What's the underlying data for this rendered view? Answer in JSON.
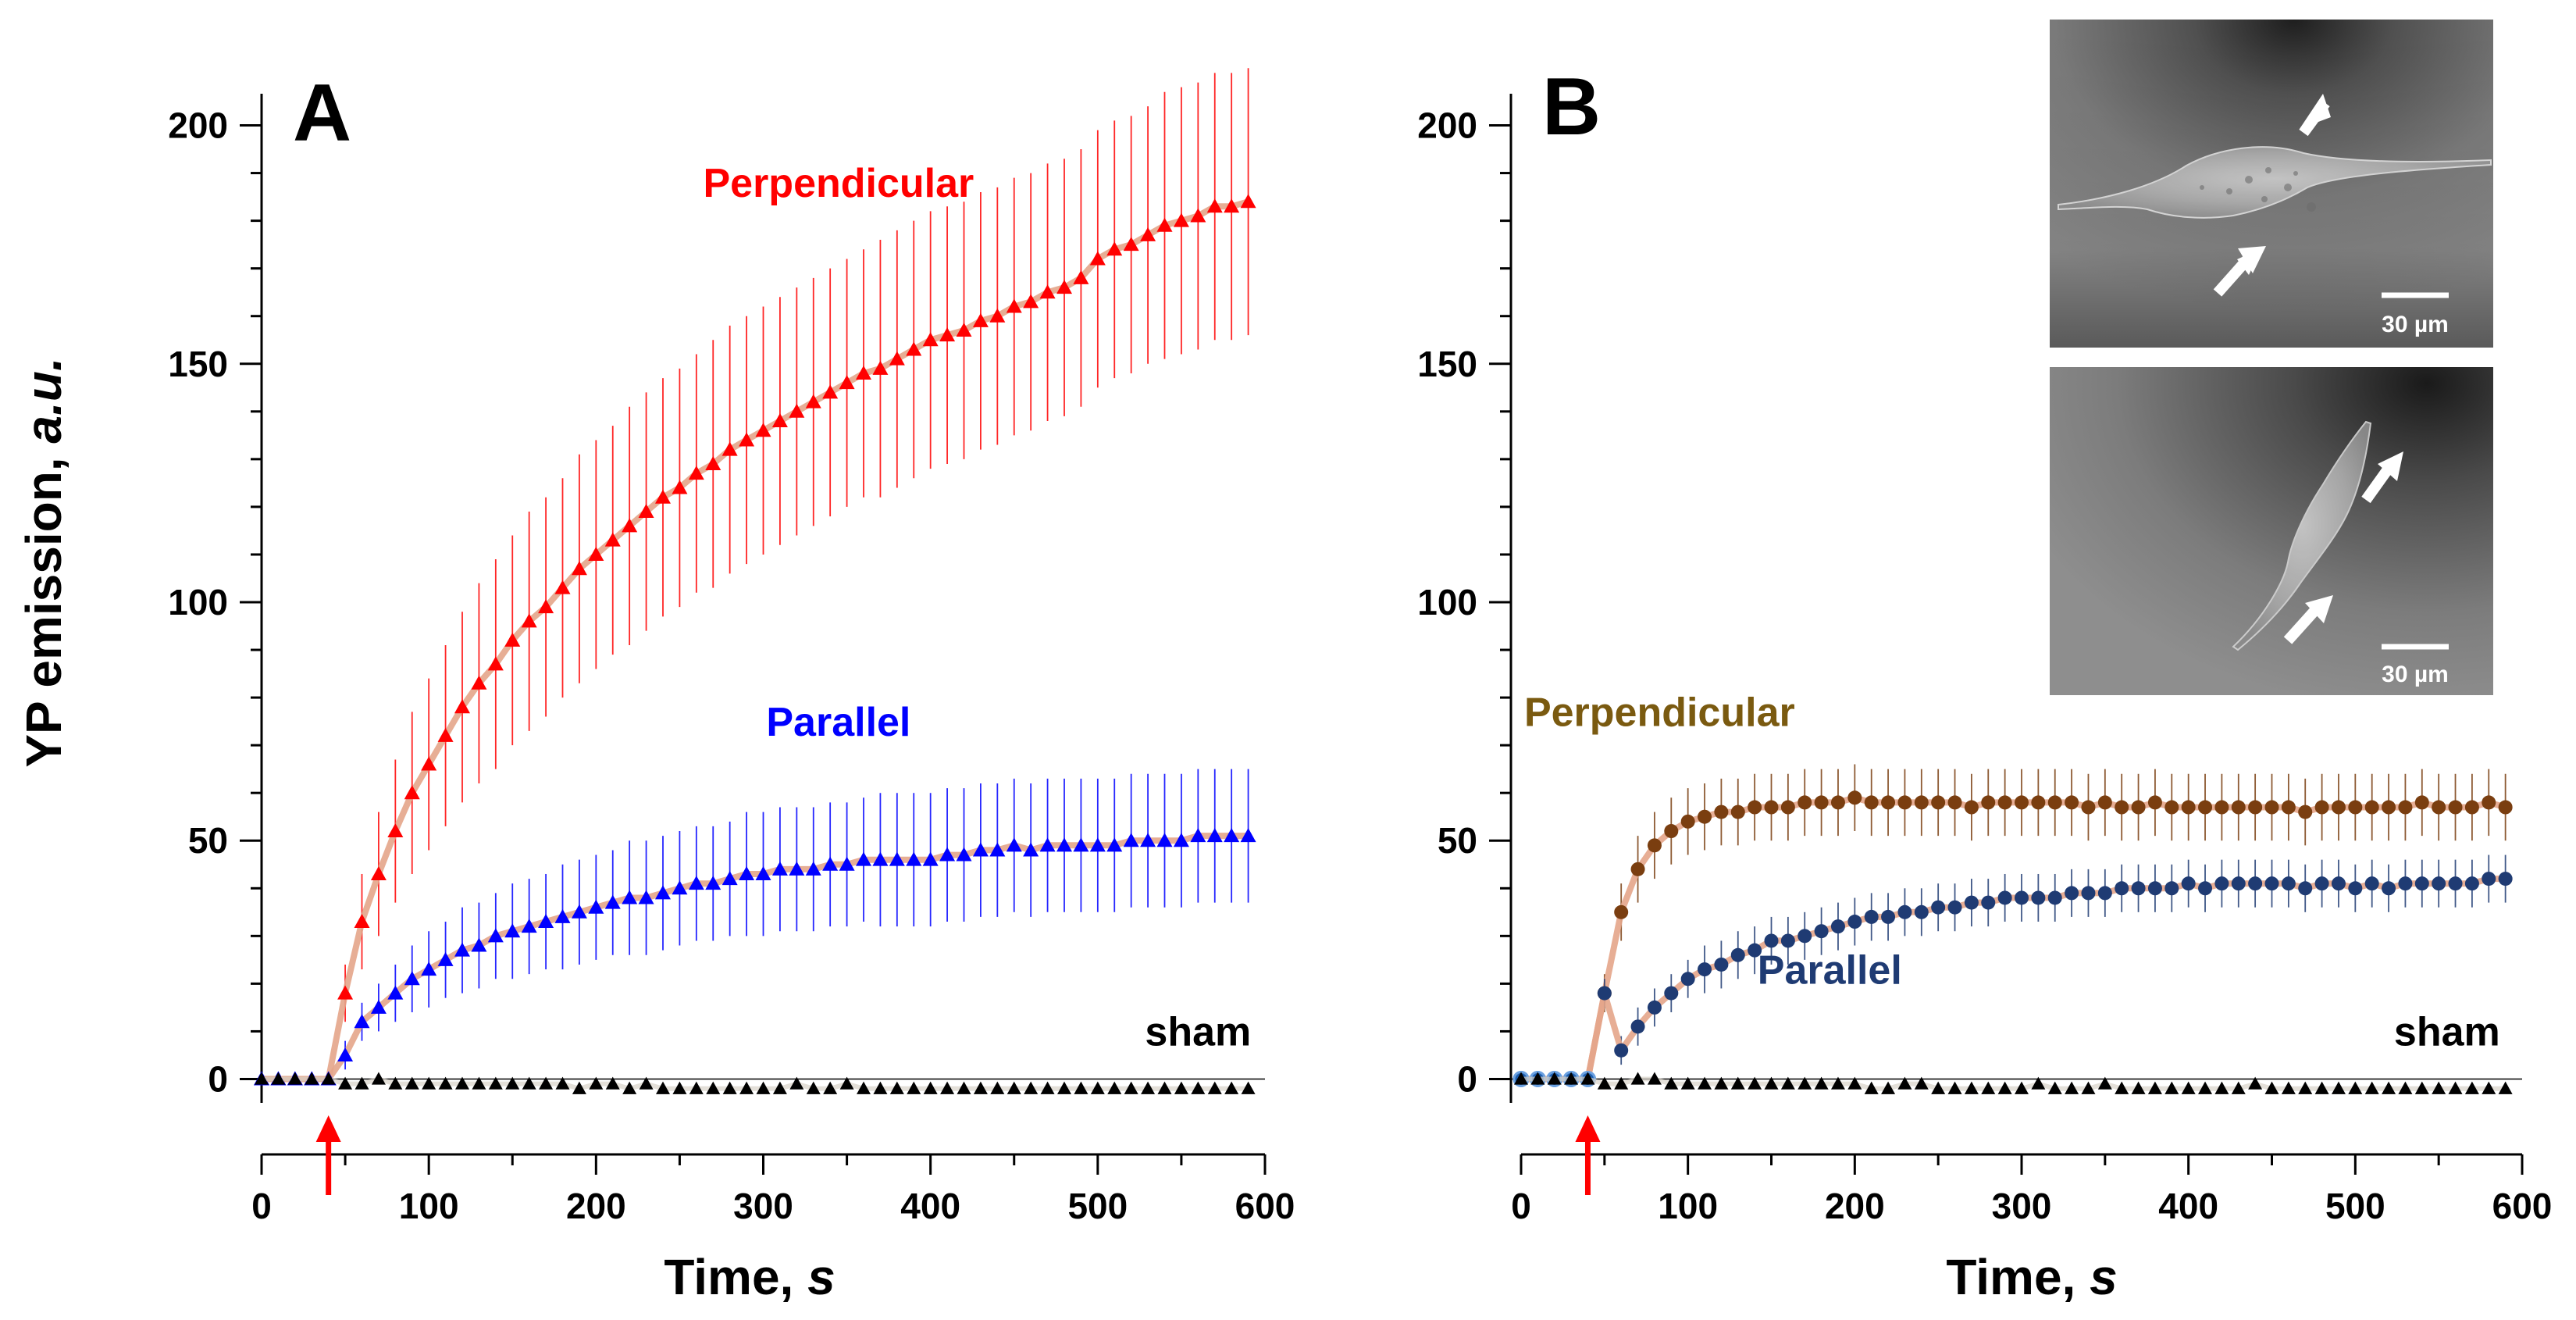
{
  "figure": {
    "ylabel": {
      "main": "YP emission, ",
      "italic": "a.u."
    },
    "xlabel": {
      "main": "Time, ",
      "italic": "s"
    }
  },
  "colors": {
    "A_perpendicular": "#ff0000",
    "A_parallel": "#0000ff",
    "B_perpendicular": "#7a3e10",
    "B_parallel": "#1f3b73",
    "sham": "#000000",
    "fit": "#e4a58a",
    "stimulus_arrow": "#ff0000"
  },
  "chart_data": [
    {
      "panel": "A",
      "type": "scatter",
      "xlim": [
        0,
        600
      ],
      "ylim": [
        -5,
        205
      ],
      "xticks": [
        0,
        100,
        200,
        300,
        400,
        500,
        600
      ],
      "yticks": [
        0,
        50,
        100,
        150,
        200
      ],
      "stimulus_time": 40,
      "marker": "triangle",
      "x": [
        0,
        10,
        20,
        30,
        40,
        50,
        60,
        70,
        80,
        90,
        100,
        110,
        120,
        130,
        140,
        150,
        160,
        170,
        180,
        190,
        200,
        210,
        220,
        230,
        240,
        250,
        260,
        270,
        280,
        290,
        300,
        310,
        320,
        330,
        340,
        350,
        360,
        370,
        380,
        390,
        400,
        410,
        420,
        430,
        440,
        450,
        460,
        470,
        480,
        490,
        500,
        510,
        520,
        530,
        540,
        550,
        560,
        570,
        580,
        590
      ],
      "series": [
        {
          "name": "Perpendicular",
          "color_key": "A_perpendicular",
          "label_x": 345,
          "label_y": 185,
          "values": [
            0,
            0,
            0,
            0,
            0,
            18,
            33,
            43,
            52,
            60,
            66,
            72,
            78,
            83,
            87,
            92,
            96,
            99,
            103,
            107,
            110,
            113,
            116,
            119,
            122,
            124,
            127,
            129,
            132,
            134,
            136,
            138,
            140,
            142,
            144,
            146,
            148,
            149,
            151,
            153,
            155,
            156,
            157,
            159,
            160,
            162,
            163,
            165,
            166,
            168,
            172,
            174,
            175,
            177,
            179,
            180,
            181,
            183,
            183,
            184
          ],
          "errors": [
            0,
            0,
            0,
            0,
            0,
            6,
            10,
            13,
            15,
            17,
            18,
            19,
            20,
            21,
            22,
            22,
            23,
            23,
            23,
            24,
            24,
            24,
            25,
            25,
            25,
            25,
            25,
            26,
            26,
            26,
            26,
            26,
            26,
            26,
            26,
            26,
            26,
            27,
            27,
            27,
            27,
            27,
            27,
            27,
            27,
            27,
            27,
            27,
            27,
            27,
            27,
            27,
            27,
            27,
            28,
            28,
            28,
            28,
            28,
            28
          ]
        },
        {
          "name": "Parallel",
          "color_key": "A_parallel",
          "label_x": 345,
          "label_y": 72,
          "values": [
            0,
            0,
            0,
            0,
            0,
            5,
            12,
            15,
            18,
            21,
            23,
            25,
            27,
            28,
            30,
            31,
            32,
            33,
            34,
            35,
            36,
            37,
            38,
            38,
            39,
            40,
            41,
            41,
            42,
            43,
            43,
            44,
            44,
            44,
            45,
            45,
            46,
            46,
            46,
            46,
            46,
            47,
            47,
            48,
            48,
            49,
            48,
            49,
            49,
            49,
            49,
            49,
            50,
            50,
            50,
            50,
            51,
            51,
            51,
            51
          ],
          "errors": [
            0,
            0,
            0,
            0,
            0,
            3,
            4,
            5,
            6,
            7,
            8,
            8,
            9,
            9,
            9,
            10,
            10,
            10,
            11,
            11,
            11,
            11,
            12,
            12,
            12,
            12,
            12,
            12,
            12,
            13,
            13,
            13,
            13,
            13,
            13,
            13,
            13,
            14,
            14,
            14,
            14,
            14,
            14,
            14,
            14,
            14,
            14,
            14,
            14,
            14,
            14,
            14,
            14,
            14,
            14,
            14,
            14,
            14,
            14,
            14
          ]
        },
        {
          "name": "sham",
          "color_key": "sham",
          "label_x": 560,
          "label_y": 7,
          "values": [
            0,
            0,
            0,
            0,
            0,
            -1,
            -1,
            0,
            -1,
            -1,
            -1,
            -1,
            -1,
            -1,
            -1,
            -1,
            -1,
            -1,
            -1,
            -2,
            -1,
            -1,
            -2,
            -1,
            -2,
            -2,
            -2,
            -2,
            -2,
            -2,
            -2,
            -2,
            -1,
            -2,
            -2,
            -1,
            -2,
            -2,
            -2,
            -2,
            -2,
            -2,
            -2,
            -2,
            -2,
            -2,
            -2,
            -2,
            -2,
            -2,
            -2,
            -2,
            -2,
            -2,
            -2,
            -2,
            -2,
            -2,
            -2,
            -2
          ],
          "errors": []
        }
      ]
    },
    {
      "panel": "B",
      "type": "scatter",
      "xlim": [
        0,
        600
      ],
      "ylim": [
        -5,
        205
      ],
      "xticks": [
        0,
        100,
        200,
        300,
        400,
        500,
        600
      ],
      "yticks": [
        0,
        50,
        100,
        150,
        200
      ],
      "stimulus_time": 40,
      "marker": "circle",
      "x": [
        0,
        10,
        20,
        30,
        40,
        50,
        60,
        70,
        80,
        90,
        100,
        110,
        120,
        130,
        140,
        150,
        160,
        170,
        180,
        190,
        200,
        210,
        220,
        230,
        240,
        250,
        260,
        270,
        280,
        290,
        300,
        310,
        320,
        330,
        340,
        350,
        360,
        370,
        380,
        390,
        400,
        410,
        420,
        430,
        440,
        450,
        460,
        470,
        480,
        490,
        500,
        510,
        520,
        530,
        540,
        550,
        560,
        570,
        580,
        590
      ],
      "series": [
        {
          "name": "Perpendicular",
          "color_key": "B_perpendicular",
          "label_x": 83,
          "label_y": 74,
          "values": [
            0,
            0,
            0,
            0,
            0,
            18,
            35,
            44,
            49,
            52,
            54,
            55,
            56,
            56,
            57,
            57,
            57,
            58,
            58,
            58,
            59,
            58,
            58,
            58,
            58,
            58,
            58,
            57,
            58,
            58,
            58,
            58,
            58,
            58,
            57,
            58,
            57,
            57,
            58,
            57,
            57,
            57,
            57,
            57,
            57,
            57,
            57,
            56,
            57,
            57,
            57,
            57,
            57,
            57,
            58,
            57,
            57,
            57,
            58,
            57
          ],
          "errors": [
            0,
            0,
            0,
            0,
            0,
            4,
            6,
            7,
            7,
            7,
            7,
            7,
            7,
            7,
            7,
            7,
            7,
            7,
            7,
            7,
            7,
            7,
            7,
            7,
            7,
            7,
            7,
            7,
            7,
            7,
            7,
            7,
            7,
            7,
            7,
            7,
            7,
            7,
            7,
            7,
            7,
            7,
            7,
            7,
            7,
            7,
            7,
            7,
            7,
            7,
            7,
            7,
            7,
            7,
            7,
            7,
            7,
            7,
            7,
            7
          ]
        },
        {
          "name": "Parallel",
          "color_key": "B_parallel",
          "label_x": 185,
          "label_y": 20,
          "values": [
            0,
            0,
            0,
            0,
            0,
            18,
            6,
            11,
            15,
            18,
            21,
            23,
            24,
            26,
            27,
            29,
            29,
            30,
            31,
            32,
            33,
            34,
            34,
            35,
            35,
            36,
            36,
            37,
            37,
            38,
            38,
            38,
            38,
            39,
            39,
            39,
            40,
            40,
            40,
            40,
            41,
            40,
            41,
            41,
            41,
            41,
            41,
            40,
            41,
            41,
            40,
            41,
            40,
            41,
            41,
            41,
            41,
            41,
            42,
            42
          ],
          "errors": [
            0,
            0,
            0,
            0,
            0,
            3,
            3,
            4,
            4,
            4,
            4,
            5,
            5,
            5,
            5,
            5,
            5,
            5,
            5,
            5,
            5,
            5,
            5,
            5,
            5,
            5,
            5,
            5,
            5,
            5,
            5,
            5,
            5,
            5,
            5,
            5,
            5,
            5,
            5,
            5,
            5,
            5,
            5,
            5,
            5,
            5,
            5,
            5,
            5,
            5,
            5,
            5,
            5,
            5,
            5,
            5,
            5,
            5,
            5,
            5
          ]
        },
        {
          "name": "sham",
          "color_key": "sham",
          "label_x": 555,
          "label_y": 7,
          "values": [
            0,
            0,
            0,
            0,
            0,
            -1,
            -1,
            0,
            0,
            -1,
            -1,
            -1,
            -1,
            -1,
            -1,
            -1,
            -1,
            -1,
            -1,
            -1,
            -1,
            -2,
            -2,
            -1,
            -1,
            -2,
            -2,
            -2,
            -2,
            -2,
            -2,
            -1,
            -2,
            -2,
            -2,
            -1,
            -2,
            -2,
            -2,
            -2,
            -2,
            -2,
            -2,
            -2,
            -1,
            -2,
            -2,
            -2,
            -2,
            -2,
            -2,
            -2,
            -2,
            -2,
            -2,
            -2,
            -2,
            -2,
            -2,
            -2
          ],
          "errors": []
        }
      ]
    }
  ],
  "insets": [
    {
      "scale_label": "30 µm"
    },
    {
      "scale_label": "30 µm"
    }
  ]
}
